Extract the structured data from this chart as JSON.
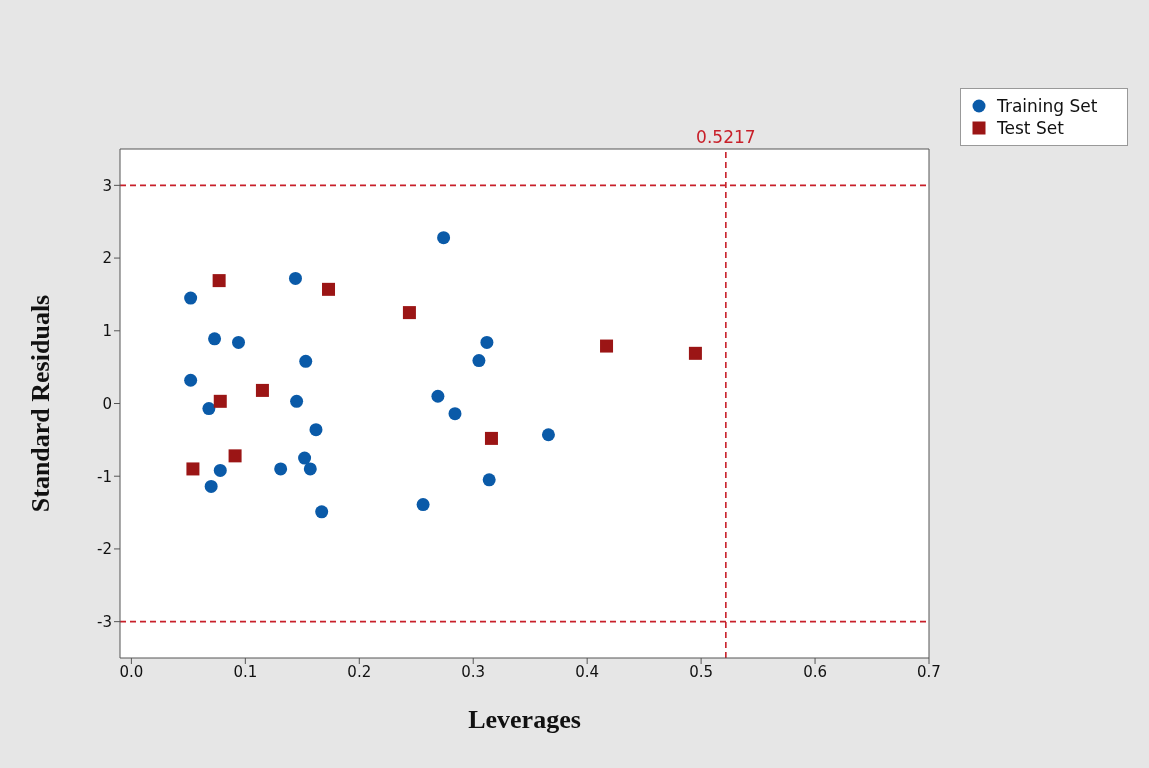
{
  "chart_data": {
    "type": "scatter",
    "xlabel": "Leverages",
    "ylabel": "Standard Residuals",
    "xlim": [
      -0.01,
      0.7
    ],
    "xticks": [
      {
        "value": 0,
        "label": "0.0"
      },
      0.1,
      0.2,
      0.3,
      0.4,
      0.5,
      0.6,
      0.7
    ],
    "ylim": [
      -3.5,
      3.5
    ],
    "yticks": [
      -3,
      -2,
      -1,
      0,
      1,
      2,
      3
    ],
    "grid": false,
    "legend": "top right",
    "series": [
      {
        "name": "Training Set",
        "color": "#0a5aa8",
        "marker": "circle",
        "x": [
          0.052,
          0.052,
          0.073,
          0.094,
          0.068,
          0.07,
          0.078,
          0.144,
          0.153,
          0.145,
          0.162,
          0.152,
          0.157,
          0.131,
          0.167,
          0.274,
          0.269,
          0.284,
          0.305,
          0.312,
          0.256,
          0.314,
          0.366
        ],
        "values": [
          1.45,
          0.32,
          0.89,
          0.84,
          -0.07,
          -1.14,
          -0.92,
          1.72,
          0.58,
          0.03,
          -0.36,
          -0.75,
          -0.9,
          -0.9,
          -1.49,
          2.28,
          0.1,
          -0.14,
          0.59,
          0.84,
          -1.39,
          -1.05,
          -0.43
        ]
      },
      {
        "name": "Test Set",
        "color": "#9b1515",
        "marker": "square",
        "x": [
          0.077,
          0.173,
          0.244,
          0.078,
          0.115,
          0.054,
          0.091,
          0.316,
          0.417,
          0.495
        ],
        "values": [
          1.69,
          1.57,
          1.25,
          0.03,
          0.18,
          -0.9,
          -0.72,
          -0.48,
          0.79,
          0.69
        ]
      }
    ],
    "ref_lines": [
      {
        "axis": "x",
        "value": 0.5217,
        "label": "0.5217",
        "color": "#c8202a",
        "line_style": "dashed"
      },
      {
        "axis": "y",
        "value": 3,
        "color": "#c8202a",
        "line_style": "dashed"
      },
      {
        "axis": "y",
        "value": -3,
        "color": "#c8202a",
        "line_style": "dashed"
      }
    ]
  }
}
